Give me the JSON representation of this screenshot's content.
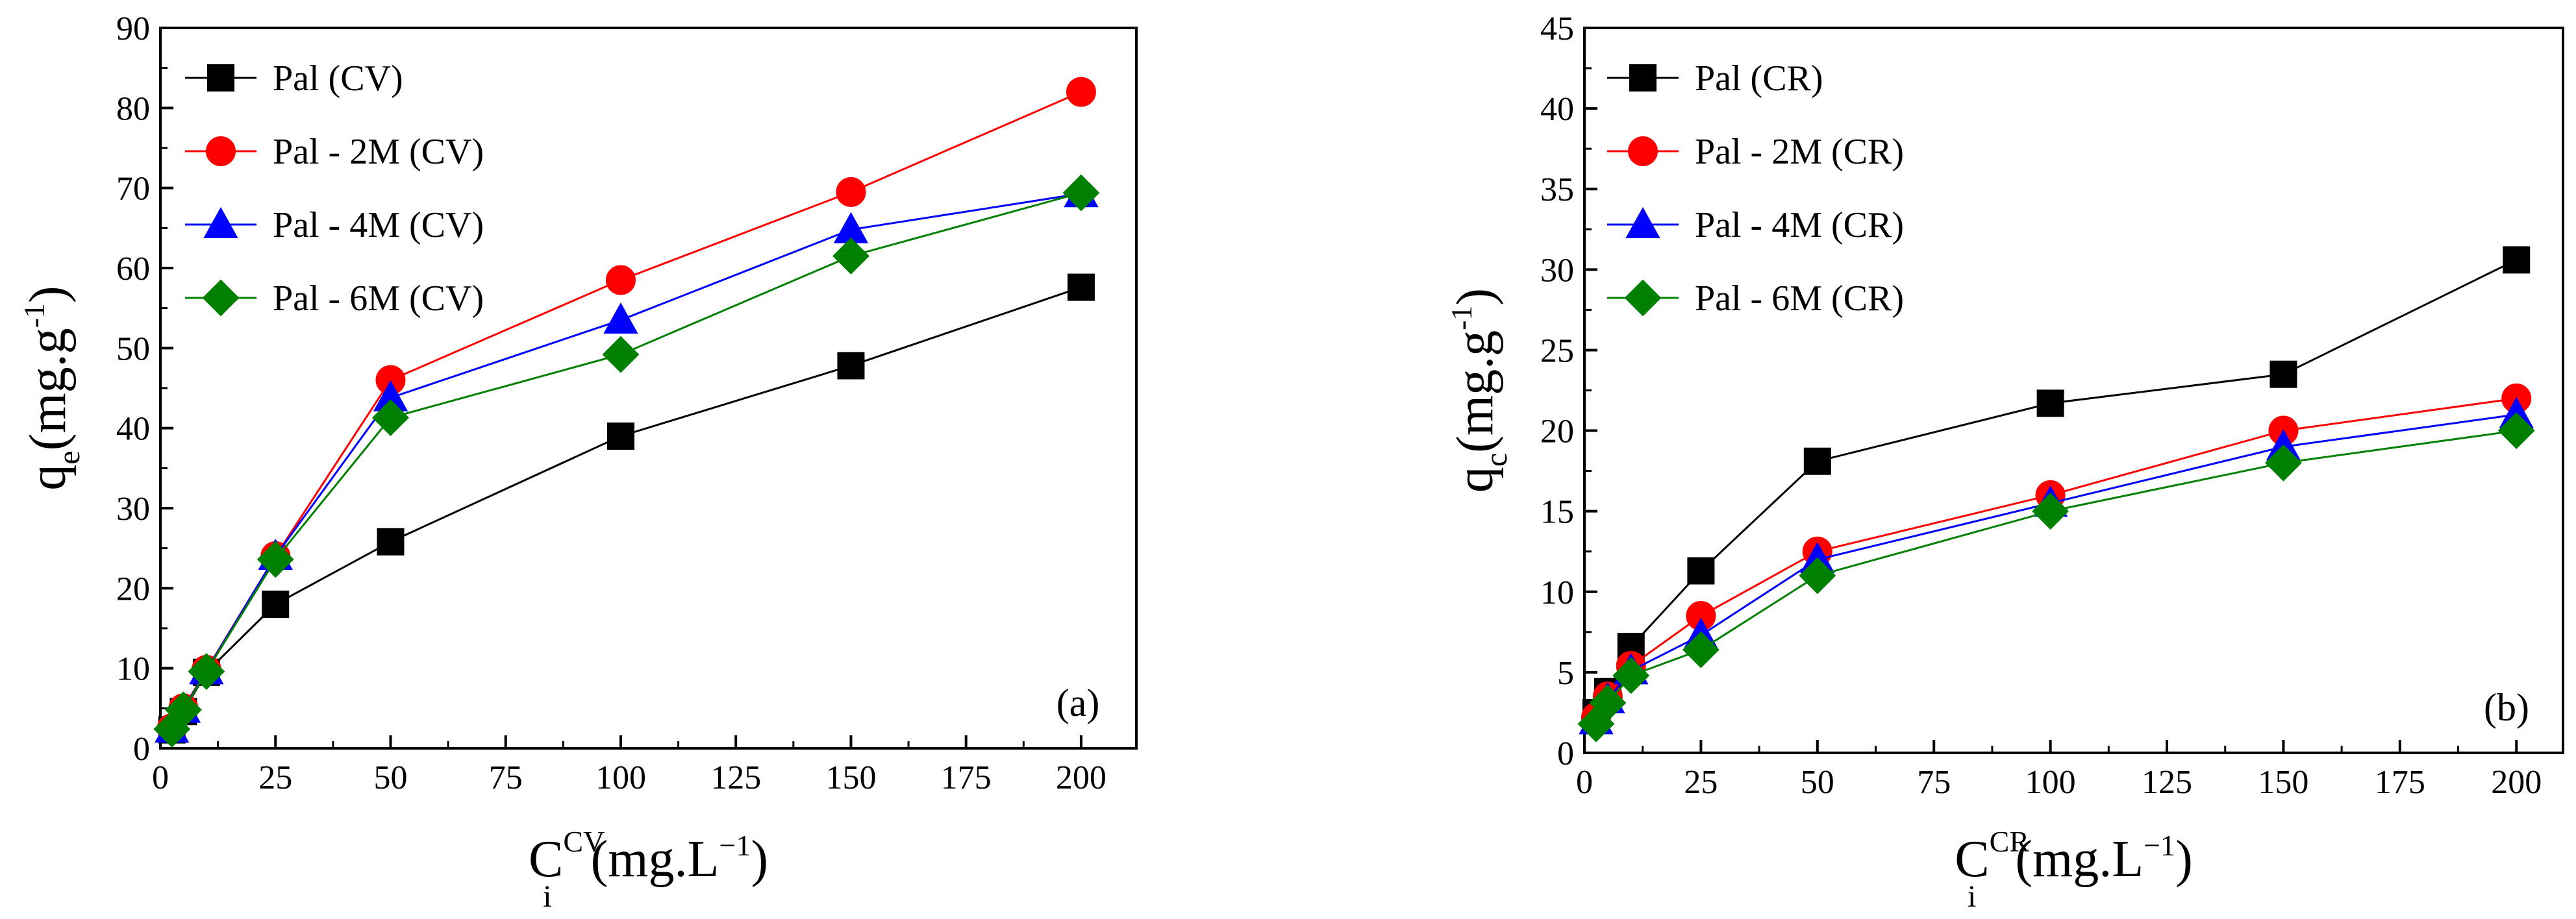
{
  "chart_data": [
    {
      "type": "line",
      "panel": "(a)",
      "xlabel": {
        "base": "C",
        "sub": "i",
        "sup": "CV",
        "unit": "(mg.L",
        "unit_exp": "−1",
        "unit_close": ")"
      },
      "ylabel": {
        "base": "q",
        "sub": "e",
        "unit": "(mg.g",
        "unit_exp": "-1",
        "unit_close": ")"
      },
      "xlim": [
        0,
        212
      ],
      "ylim": [
        0,
        90
      ],
      "xticks": [
        0,
        25,
        50,
        75,
        100,
        125,
        150,
        175,
        200
      ],
      "yticks": [
        0,
        10,
        20,
        30,
        40,
        50,
        60,
        70,
        80,
        90
      ],
      "legend_position": "top-left",
      "series": [
        {
          "name": "Pal (CV)",
          "color": "#000000",
          "marker": "square",
          "x": [
            2.5,
            5,
            10,
            25,
            50,
            100,
            150,
            200
          ],
          "y": [
            2.3,
            4.6,
            9.5,
            18.0,
            25.8,
            39.0,
            47.8,
            57.6
          ]
        },
        {
          "name": "Pal - 2M (CV)",
          "color": "#ff0000",
          "marker": "circle",
          "x": [
            2.5,
            5,
            10,
            25,
            50,
            100,
            150,
            200
          ],
          "y": [
            2.5,
            5.0,
            9.8,
            24.0,
            46.0,
            58.5,
            69.5,
            82.0
          ]
        },
        {
          "name": "Pal - 4M (CV)",
          "color": "#0000ff",
          "marker": "triangle",
          "x": [
            2.5,
            5,
            10,
            25,
            50,
            100,
            150,
            200
          ],
          "y": [
            2.4,
            4.9,
            9.7,
            24.0,
            43.8,
            53.5,
            64.8,
            69.3
          ]
        },
        {
          "name": "Pal - 6M (CV)",
          "color": "#008000",
          "marker": "diamond",
          "x": [
            2.5,
            5,
            10,
            25,
            50,
            100,
            150,
            200
          ],
          "y": [
            2.4,
            4.8,
            9.6,
            23.6,
            41.3,
            49.2,
            61.5,
            69.4
          ]
        }
      ]
    },
    {
      "type": "line",
      "panel": "(b)",
      "xlabel": {
        "base": "C",
        "sub": "i",
        "sup": "CR",
        "unit": "(mg.L",
        "unit_exp": "−1",
        "unit_close": ")"
      },
      "ylabel": {
        "base": "q",
        "sub": "c",
        "unit": "(mg.g",
        "unit_exp": "-1",
        "unit_close": ")"
      },
      "xlim": [
        0,
        210
      ],
      "ylim": [
        0,
        45
      ],
      "xticks": [
        0,
        25,
        50,
        75,
        100,
        125,
        150,
        175,
        200
      ],
      "yticks": [
        0,
        5,
        10,
        15,
        20,
        25,
        30,
        35,
        40,
        45
      ],
      "legend_position": "top-left",
      "series": [
        {
          "name": "Pal (CR)",
          "color": "#000000",
          "marker": "square",
          "x": [
            2.5,
            5,
            10,
            25,
            50,
            100,
            150,
            200
          ],
          "y": [
            2.5,
            3.8,
            6.6,
            11.3,
            18.1,
            21.7,
            23.5,
            30.6
          ]
        },
        {
          "name": "Pal - 2M (CR)",
          "color": "#ff0000",
          "marker": "circle",
          "x": [
            2.5,
            5,
            10,
            25,
            50,
            100,
            150,
            200
          ],
          "y": [
            2.2,
            3.5,
            5.4,
            8.5,
            12.5,
            16.0,
            20.0,
            22.0
          ]
        },
        {
          "name": "Pal - 4M (CR)",
          "color": "#0000ff",
          "marker": "triangle",
          "x": [
            2.5,
            5,
            10,
            25,
            50,
            100,
            150,
            200
          ],
          "y": [
            2.0,
            3.3,
            5.1,
            7.3,
            12.0,
            15.5,
            19.0,
            21.0
          ]
        },
        {
          "name": "Pal - 6M (CR)",
          "color": "#008000",
          "marker": "diamond",
          "x": [
            2.5,
            5,
            10,
            25,
            50,
            100,
            150,
            200
          ],
          "y": [
            1.8,
            3.1,
            4.8,
            6.4,
            11.0,
            15.0,
            18.0,
            20.0
          ]
        }
      ]
    }
  ]
}
